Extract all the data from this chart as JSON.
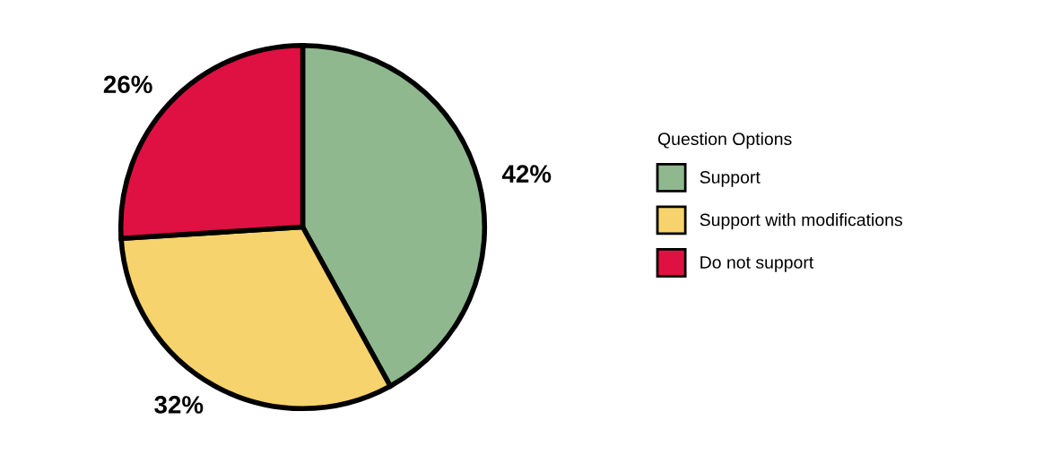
{
  "chart_data": {
    "type": "pie",
    "legend_title": "Question Options",
    "categories": [
      "Support",
      "Support with modifications",
      "Do not support"
    ],
    "values": [
      42,
      32,
      26
    ],
    "colors": [
      "#8fb88f",
      "#f6d36c",
      "#df1142"
    ],
    "value_labels": [
      "42%",
      "32%",
      "26%"
    ],
    "legend": "right"
  }
}
